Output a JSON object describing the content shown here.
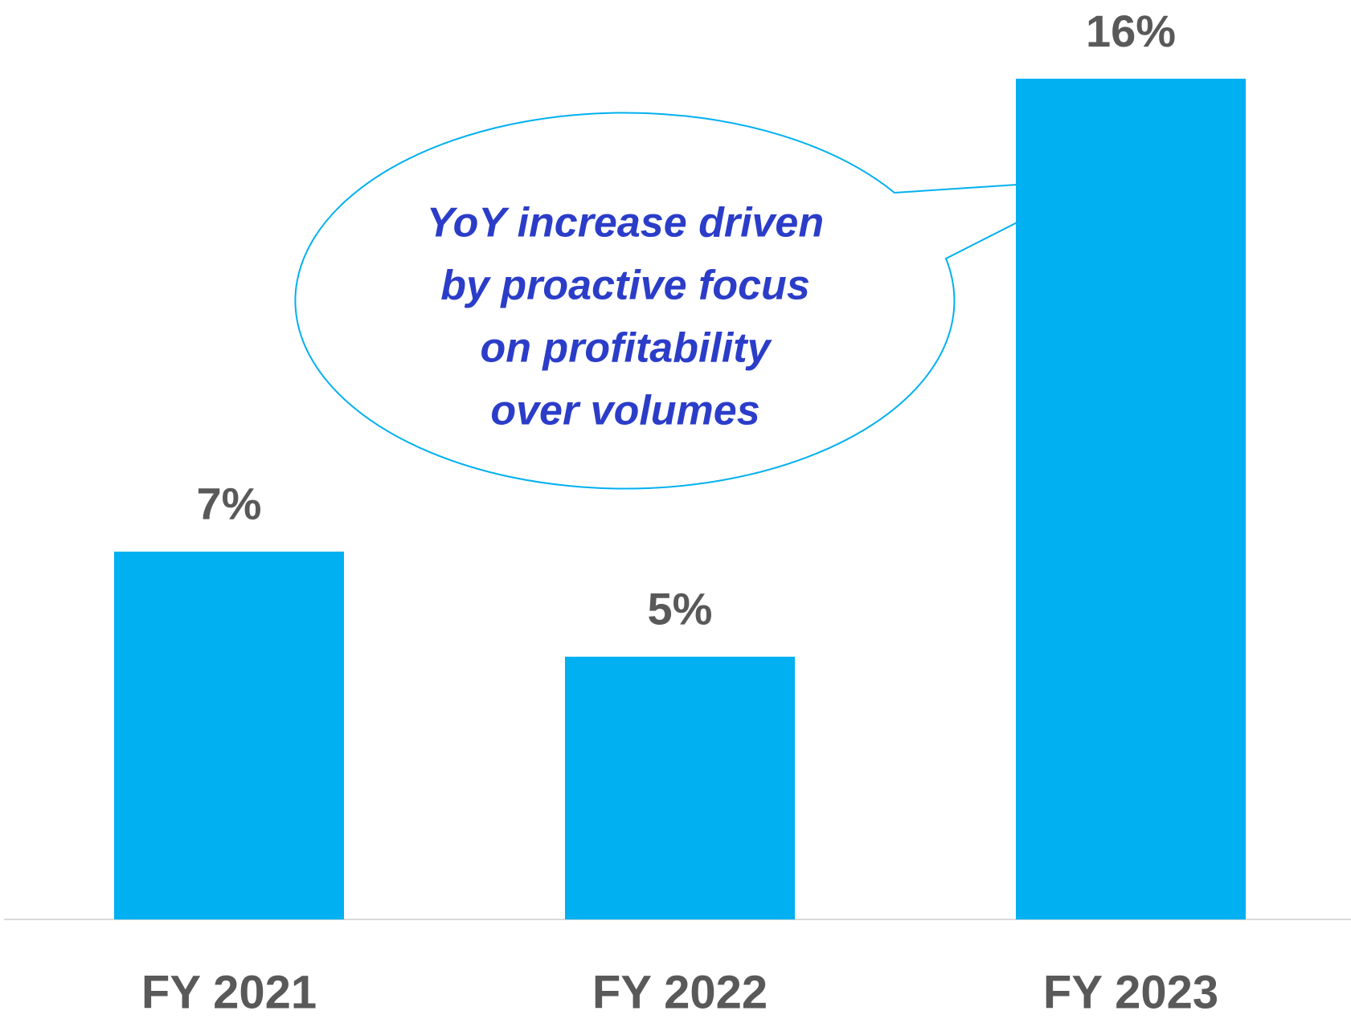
{
  "chart_data": {
    "type": "bar",
    "categories": [
      "FY 2021",
      "FY 2022",
      "FY 2023"
    ],
    "values": [
      7,
      5,
      16
    ],
    "value_labels": [
      "7%",
      "5%",
      "16%"
    ],
    "color": "#00b0f0",
    "annotation_lines": [
      "YoY increase driven",
      "by proactive focus",
      "on profitability",
      "over volumes"
    ]
  }
}
